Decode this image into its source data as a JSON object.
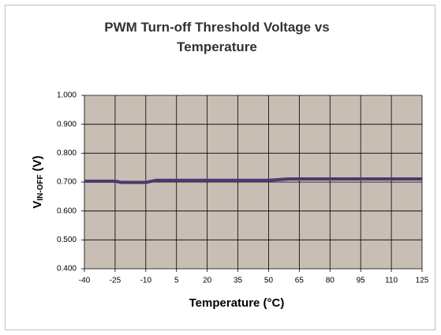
{
  "chart_data": {
    "type": "line",
    "title": "PWM Turn-off Threshold Voltage vs Temperature",
    "x_label": "Temperature (°C)",
    "y_label": {
      "main": "V",
      "sub": "IN-OFF",
      "unit": "(V)"
    },
    "xlim": [
      -40,
      125
    ],
    "xticks": [
      -40,
      -25,
      -10,
      5,
      20,
      35,
      50,
      65,
      80,
      95,
      110,
      125
    ],
    "ylim": [
      0.4,
      1.0
    ],
    "yticks": [
      {
        "value": 0.4,
        "label": "0.400"
      },
      {
        "value": 0.5,
        "label": "0.500"
      },
      {
        "value": 0.6,
        "label": "0.600"
      },
      {
        "value": 0.7,
        "label": "0.700"
      },
      {
        "value": 0.8,
        "label": "0.800"
      },
      {
        "value": 0.9,
        "label": "0.900"
      },
      {
        "value": 1.0,
        "label": "1.000"
      }
    ],
    "grid": true,
    "plot_background": "#c8beb4",
    "series": [
      {
        "color": "#4b3a6e",
        "x": [
          -40,
          -25,
          -22,
          -10,
          -5,
          50,
          60,
          125
        ],
        "values": [
          0.703,
          0.703,
          0.699,
          0.699,
          0.706,
          0.706,
          0.711,
          0.711
        ]
      }
    ]
  }
}
